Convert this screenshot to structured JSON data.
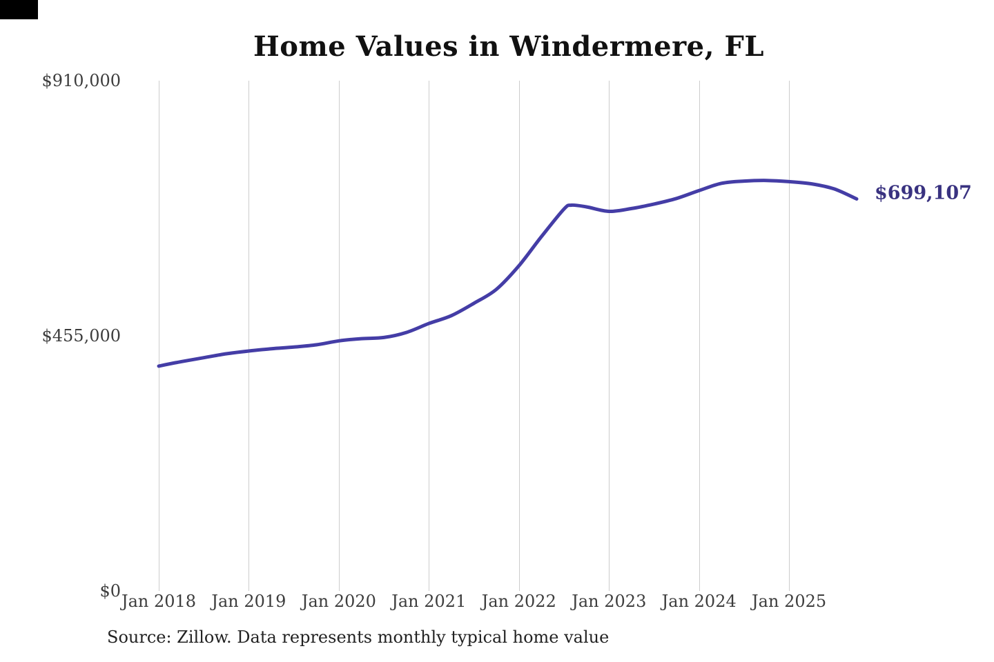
{
  "page": {
    "background": "#ffffff"
  },
  "chart_data": {
    "type": "line",
    "title": "Home Values in Windermere, FL",
    "xlabel": "",
    "ylabel": "",
    "ylim": [
      0,
      910000
    ],
    "grid": "vertical-only",
    "legend": "none",
    "line_color": "#443da6",
    "gridline_color": "#cccccc",
    "x_ticks": [
      "Jan 2018",
      "Jan 2019",
      "Jan 2020",
      "Jan 2021",
      "Jan 2022",
      "Jan 2023",
      "Jan 2024",
      "Jan 2025"
    ],
    "y_ticks": [
      {
        "label": "$910,000",
        "value": 910000
      },
      {
        "label": "$455,000",
        "value": 455000
      },
      {
        "label": "$0",
        "value": 0
      }
    ],
    "end_label": {
      "text": "$699,107",
      "color": "#393280"
    },
    "source_note": "Source: Zillow. Data represents monthly typical home value",
    "series": [
      {
        "name": "Monthly typical home value",
        "points": [
          [
            "2018-01",
            401000
          ],
          [
            "2018-04",
            409000
          ],
          [
            "2018-07",
            416000
          ],
          [
            "2018-10",
            423000
          ],
          [
            "2019-01",
            428000
          ],
          [
            "2019-04",
            432000
          ],
          [
            "2019-07",
            435000
          ],
          [
            "2019-10",
            439000
          ],
          [
            "2020-01",
            446000
          ],
          [
            "2020-04",
            450000
          ],
          [
            "2020-07",
            452000
          ],
          [
            "2020-10",
            461000
          ],
          [
            "2021-01",
            477000
          ],
          [
            "2021-04",
            491000
          ],
          [
            "2021-07",
            513000
          ],
          [
            "2021-10",
            538000
          ],
          [
            "2022-01",
            580000
          ],
          [
            "2022-04",
            632000
          ],
          [
            "2022-07",
            681000
          ],
          [
            "2022-08",
            688000
          ],
          [
            "2022-10",
            685000
          ],
          [
            "2023-01",
            677000
          ],
          [
            "2023-04",
            682000
          ],
          [
            "2023-07",
            690000
          ],
          [
            "2023-10",
            700000
          ],
          [
            "2024-01",
            714000
          ],
          [
            "2024-04",
            727000
          ],
          [
            "2024-07",
            731000
          ],
          [
            "2024-10",
            732000
          ],
          [
            "2025-01",
            730000
          ],
          [
            "2025-04",
            726000
          ],
          [
            "2025-07",
            717000
          ],
          [
            "2025-10",
            699107
          ]
        ]
      }
    ]
  }
}
